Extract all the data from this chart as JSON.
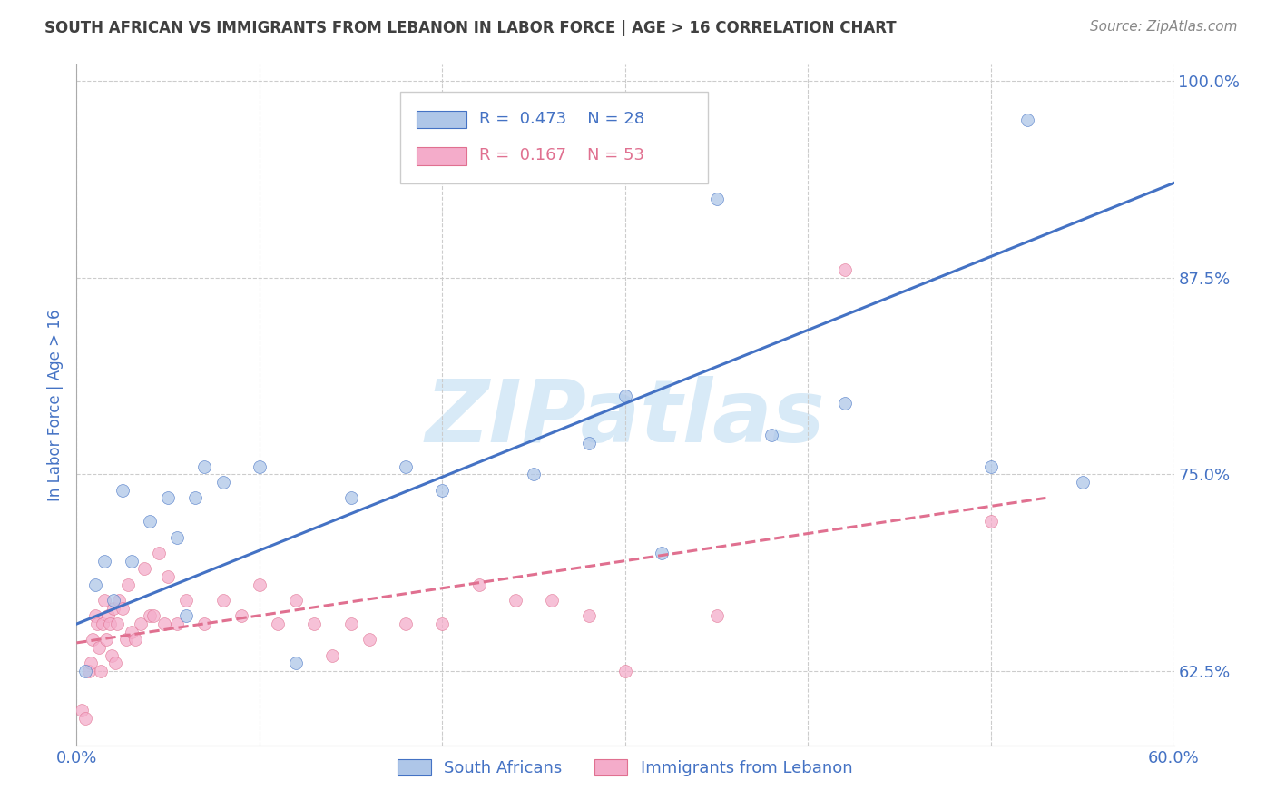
{
  "title": "SOUTH AFRICAN VS IMMIGRANTS FROM LEBANON IN LABOR FORCE | AGE > 16 CORRELATION CHART",
  "source": "Source: ZipAtlas.com",
  "ylabel": "In Labor Force | Age > 16",
  "xlim": [
    0.0,
    0.6
  ],
  "ylim": [
    0.578,
    1.01
  ],
  "yticks": [
    0.625,
    0.75,
    0.875,
    1.0
  ],
  "ytick_labels": [
    "62.5%",
    "75.0%",
    "87.5%",
    "100.0%"
  ],
  "xticks": [
    0.0,
    0.1,
    0.2,
    0.3,
    0.4,
    0.5,
    0.6
  ],
  "xtick_labels": [
    "0.0%",
    "",
    "",
    "",
    "",
    "",
    "60.0%"
  ],
  "blue_R": 0.473,
  "blue_N": 28,
  "pink_R": 0.167,
  "pink_N": 53,
  "blue_fill_color": "#AEC6E8",
  "pink_fill_color": "#F4ACCA",
  "blue_edge_color": "#4472C4",
  "pink_edge_color": "#E07090",
  "blue_line_color": "#4472C4",
  "pink_line_color": "#E07090",
  "title_color": "#404040",
  "axis_label_color": "#4472C4",
  "tick_color": "#4472C4",
  "watermark_color": "#D8EAF7",
  "background_color": "#FFFFFF",
  "grid_color": "#CCCCCC",
  "blue_scatter_x": [
    0.005,
    0.01,
    0.015,
    0.02,
    0.025,
    0.03,
    0.04,
    0.05,
    0.055,
    0.06,
    0.065,
    0.07,
    0.08,
    0.1,
    0.12,
    0.15,
    0.18,
    0.2,
    0.25,
    0.28,
    0.3,
    0.32,
    0.35,
    0.38,
    0.42,
    0.5,
    0.52,
    0.55
  ],
  "blue_scatter_y": [
    0.625,
    0.68,
    0.695,
    0.67,
    0.74,
    0.695,
    0.72,
    0.735,
    0.71,
    0.66,
    0.735,
    0.755,
    0.745,
    0.755,
    0.63,
    0.735,
    0.755,
    0.74,
    0.75,
    0.77,
    0.8,
    0.7,
    0.925,
    0.775,
    0.795,
    0.755,
    0.975,
    0.745
  ],
  "pink_scatter_x": [
    0.003,
    0.005,
    0.007,
    0.008,
    0.009,
    0.01,
    0.011,
    0.012,
    0.013,
    0.014,
    0.015,
    0.016,
    0.017,
    0.018,
    0.019,
    0.02,
    0.021,
    0.022,
    0.023,
    0.025,
    0.027,
    0.028,
    0.03,
    0.032,
    0.035,
    0.037,
    0.04,
    0.042,
    0.045,
    0.048,
    0.05,
    0.055,
    0.06,
    0.07,
    0.08,
    0.09,
    0.1,
    0.11,
    0.12,
    0.13,
    0.14,
    0.15,
    0.16,
    0.18,
    0.2,
    0.22,
    0.24,
    0.26,
    0.28,
    0.3,
    0.35,
    0.42,
    0.5
  ],
  "pink_scatter_y": [
    0.6,
    0.595,
    0.625,
    0.63,
    0.645,
    0.66,
    0.655,
    0.64,
    0.625,
    0.655,
    0.67,
    0.645,
    0.66,
    0.655,
    0.635,
    0.665,
    0.63,
    0.655,
    0.67,
    0.665,
    0.645,
    0.68,
    0.65,
    0.645,
    0.655,
    0.69,
    0.66,
    0.66,
    0.7,
    0.655,
    0.685,
    0.655,
    0.67,
    0.655,
    0.67,
    0.66,
    0.68,
    0.655,
    0.67,
    0.655,
    0.635,
    0.655,
    0.645,
    0.655,
    0.655,
    0.68,
    0.67,
    0.67,
    0.66,
    0.625,
    0.66,
    0.88,
    0.72
  ],
  "blue_line_x": [
    0.0,
    0.6
  ],
  "blue_line_y": [
    0.655,
    0.935
  ],
  "pink_line_x": [
    0.0,
    0.53
  ],
  "pink_line_y": [
    0.643,
    0.735
  ],
  "marker_size": 100,
  "marker_alpha": 0.75,
  "line_width": 2.2
}
